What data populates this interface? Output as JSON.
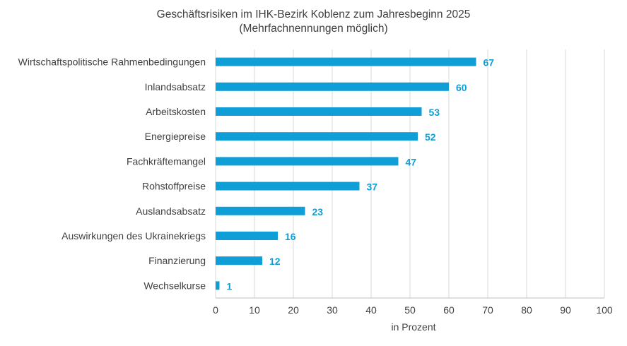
{
  "chart_data": {
    "type": "bar",
    "orientation": "horizontal",
    "title": "Geschäftsrisiken im IHK-Bezirk Koblenz zum Jahresbeginn 2025",
    "subtitle": "(Mehrfachnennungen möglich)",
    "categories": [
      "Wirtschaftspolitische Rahmenbedingungen",
      "Inlandsabsatz",
      "Arbeitskosten",
      "Energiepreise",
      "Fachkräftemangel",
      "Rohstoffpreise",
      "Auslandsabsatz",
      "Auswirkungen des Ukrainekriegs",
      "Finanzierung",
      "Wechselkurse"
    ],
    "values": [
      67,
      60,
      53,
      52,
      47,
      37,
      23,
      16,
      12,
      1
    ],
    "xlabel": "in Prozent",
    "ylabel": "",
    "xlim": [
      0,
      100
    ],
    "xticks": [
      0,
      10,
      20,
      30,
      40,
      50,
      60,
      70,
      80,
      90,
      100
    ],
    "grid": true,
    "legend": "none",
    "bar_color": "#0f9ed5",
    "label_color": "#0f9ed5"
  }
}
